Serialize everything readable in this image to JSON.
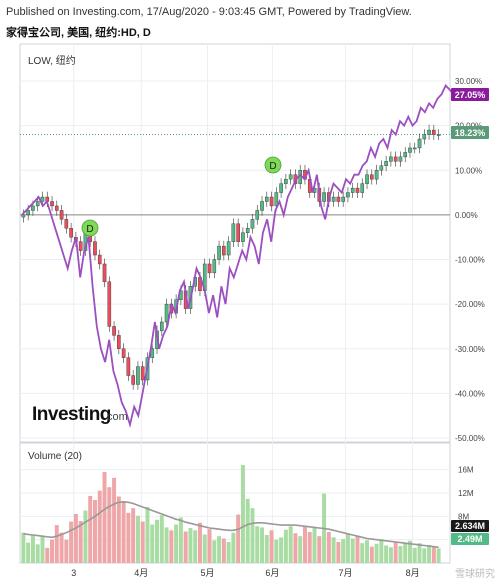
{
  "header": {
    "publish_line": "Published on Investing.com, 17/Aug/2020 - 9:03:45 GMT, Powered by TradingView.",
    "symbol_line": "家得宝公司, 美国, 纽约:HD, D"
  },
  "legend": {
    "main": "LOW, 纽约",
    "volume": "Volume (20)"
  },
  "branding": {
    "logo_text_left": "Investing",
    "logo_text_right": ".com"
  },
  "watermark": "雪球研究",
  "colors": {
    "up": "#53b987",
    "down": "#eb4d5c",
    "compare": "#9c4fc0",
    "vol_up": "#a9dca3",
    "vol_down": "#efa6a8",
    "vol_ma": "#999999",
    "badge_green": "#7ed957",
    "last_price_tag": "#5b9a79",
    "compare_tag": "#8a1c9c"
  },
  "chart_data": [
    {
      "type": "line",
      "title": "",
      "xlabel": "",
      "ylabel": "",
      "x_tick_labels": [
        "3",
        "4月",
        "5月",
        "6月",
        "7月",
        "8月"
      ],
      "y_tick_labels": [
        "30.00%",
        "20.00%",
        "10.00%",
        "0.00%",
        "-10.00%",
        "-20.00%",
        "-30.00%",
        "-40.00%",
        "-50.00%"
      ],
      "ylim": [
        -50,
        30
      ],
      "last_value_tags": [
        "27.05%",
        "18.23%"
      ],
      "dividend_markers": [
        "D",
        "D"
      ],
      "series": [
        {
          "kind": "compare-line",
          "values": [
            0,
            1,
            2,
            3,
            4,
            2,
            3,
            0,
            -3,
            -6,
            -9,
            -12,
            -8,
            -5,
            -14,
            -8,
            -5,
            -16,
            -25,
            -30,
            -33,
            -28,
            -35,
            -38,
            -42,
            -44,
            -47,
            -43,
            -45,
            -40,
            -35,
            -30,
            -24,
            -30,
            -27,
            -25,
            -20,
            -22,
            -17,
            -15,
            -21,
            -17,
            -12,
            -14,
            -17,
            -22,
            -18,
            -23,
            -16,
            -20,
            -12,
            -14,
            -11,
            -8,
            -10,
            -5,
            -7,
            -11,
            -4,
            -1,
            -6,
            1,
            3,
            0,
            4,
            6,
            8,
            9,
            8,
            10,
            5,
            9,
            2,
            -1,
            4,
            7,
            6,
            5,
            8,
            7,
            9,
            9,
            11,
            12,
            15,
            13,
            16,
            17,
            15,
            19,
            18,
            21,
            20,
            22,
            20,
            21,
            24,
            23,
            25,
            24,
            26,
            27,
            29,
            28,
            27
          ]
        },
        {
          "kind": "candlestick",
          "values": [
            0,
            1,
            2,
            3,
            4,
            3,
            2,
            1,
            -1,
            -3,
            -5,
            -6,
            -8,
            -3,
            -6,
            -9,
            -11,
            -15,
            -25,
            -27,
            -30,
            -32,
            -36,
            -38,
            -34,
            -37,
            -32,
            -30,
            -26,
            -24,
            -20,
            -22,
            -19,
            -17,
            -21,
            -16,
            -14,
            -17,
            -11,
            -13,
            -10,
            -7,
            -9,
            -6,
            -2,
            -6,
            -4,
            -3,
            -1,
            1,
            3,
            4,
            2,
            5,
            7,
            8,
            9,
            7,
            10,
            8,
            5,
            6,
            3,
            5,
            3,
            4,
            3,
            4,
            5,
            6,
            5,
            7,
            9,
            8,
            10,
            11,
            12,
            13,
            12,
            13,
            14,
            15,
            15,
            17,
            18,
            19,
            18,
            18
          ]
        }
      ]
    },
    {
      "type": "bar",
      "title": "Volume (20)",
      "y_tick_labels": [
        "16M",
        "12M",
        "8M",
        "4M"
      ],
      "ylim": [
        0,
        18
      ],
      "last_value_tags": [
        "2.634M",
        "2.49M"
      ],
      "values": [
        5.2,
        3.5,
        4.8,
        3.2,
        4.5,
        2.6,
        4.0,
        6.5,
        5.2,
        4.0,
        7.1,
        8.4,
        7.2,
        9.0,
        11.5,
        10.8,
        12.4,
        15.6,
        13.0,
        14.6,
        11.4,
        10.6,
        8.6,
        9.4,
        8.1,
        7.1,
        9.6,
        6.6,
        7.4,
        8.2,
        6.1,
        5.6,
        6.6,
        7.8,
        5.4,
        6.0,
        5.6,
        6.9,
        4.9,
        5.8,
        3.9,
        4.6,
        4.2,
        3.6,
        5.2,
        8.3,
        16.8,
        11.0,
        9.4,
        6.3,
        6.1,
        4.8,
        5.6,
        4.0,
        4.4,
        5.7,
        6.3,
        5.1,
        4.6,
        6.2,
        5.3,
        6.0,
        4.6,
        11.9,
        5.3,
        4.4,
        3.6,
        4.1,
        5.0,
        4.2,
        4.7,
        3.4,
        3.9,
        2.8,
        3.3,
        4.1,
        3.0,
        2.7,
        3.7,
        2.9,
        3.5,
        3.8,
        2.6,
        3.4,
        2.5,
        3.1,
        2.7,
        2.5
      ],
      "moving_average": [
        5.0,
        4.9,
        4.8,
        4.7,
        4.6,
        4.5,
        4.4,
        4.6,
        4.9,
        5.2,
        5.6,
        6.0,
        6.5,
        7.0,
        7.5,
        8.0,
        8.6,
        9.2,
        9.7,
        10.1,
        10.4,
        10.5,
        10.4,
        10.2,
        9.9,
        9.6,
        9.3,
        9.0,
        8.7,
        8.4,
        8.1,
        7.8,
        7.5,
        7.3,
        7.0,
        6.8,
        6.6,
        6.4,
        6.2,
        6.0,
        5.9,
        5.8,
        5.7,
        5.6,
        5.6,
        5.8,
        6.2,
        6.6,
        6.8,
        6.9,
        6.9,
        6.8,
        6.7,
        6.6,
        6.5,
        6.5,
        6.5,
        6.5,
        6.4,
        6.3,
        6.2,
        6.1,
        6.0,
        5.9,
        5.8,
        5.6,
        5.4,
        5.2,
        5.0,
        4.8,
        4.6,
        4.4,
        4.2,
        4.1,
        4.0,
        3.9,
        3.8,
        3.7,
        3.6,
        3.5,
        3.4,
        3.3,
        3.2,
        3.1,
        3.0,
        2.9,
        2.8,
        2.7
      ]
    }
  ]
}
